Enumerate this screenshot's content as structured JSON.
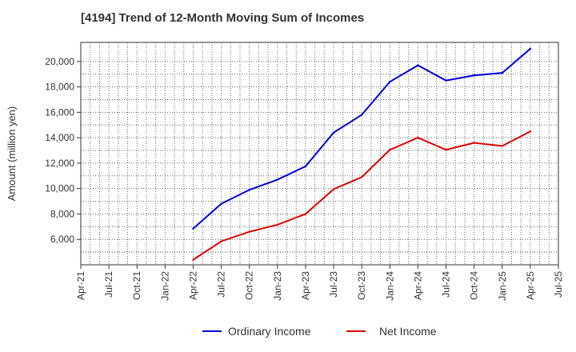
{
  "chart_data": {
    "type": "line",
    "title": "[4194]  Trend of 12-Month Moving Sum of Incomes",
    "xlabel": "",
    "ylabel": "Amount (million yen)",
    "x_ticks": [
      "Apr-21",
      "Jul-21",
      "Oct-21",
      "Jan-22",
      "Apr-22",
      "Jul-22",
      "Oct-22",
      "Jan-23",
      "Apr-23",
      "Jul-23",
      "Oct-23",
      "Jan-24",
      "Apr-24",
      "Jul-24",
      "Oct-24",
      "Jan-25",
      "Apr-25",
      "Jul-25"
    ],
    "y_ticks": [
      6000,
      8000,
      10000,
      12000,
      14000,
      16000,
      18000,
      20000
    ],
    "y_tick_labels": [
      "6,000",
      "8,000",
      "10,000",
      "12,000",
      "14,000",
      "16,000",
      "18,000",
      "20,000"
    ],
    "ylim": [
      4000,
      21500
    ],
    "grid": true,
    "legend_position": "bottom",
    "series": [
      {
        "name": "Ordinary Income",
        "color": "#0000dd",
        "x": [
          "Apr-22",
          "Jul-22",
          "Oct-22",
          "Jan-23",
          "Apr-23",
          "Jul-23",
          "Oct-23",
          "Jan-24",
          "Apr-24",
          "Jul-24",
          "Oct-24",
          "Jan-25",
          "Apr-25"
        ],
        "values": [
          6850,
          8800,
          9900,
          10700,
          11750,
          14400,
          15800,
          18400,
          19700,
          18500,
          18900,
          19100,
          21000
        ]
      },
      {
        "name": "Net Income",
        "color": "#dd0000",
        "x": [
          "Apr-22",
          "Jul-22",
          "Oct-22",
          "Jan-23",
          "Apr-23",
          "Jul-23",
          "Oct-23",
          "Jan-24",
          "Apr-24",
          "Jul-24",
          "Oct-24",
          "Jan-25",
          "Apr-25"
        ],
        "values": [
          4400,
          5850,
          6600,
          7150,
          8000,
          9950,
          10900,
          13050,
          14000,
          13050,
          13600,
          13350,
          14500
        ]
      }
    ]
  }
}
